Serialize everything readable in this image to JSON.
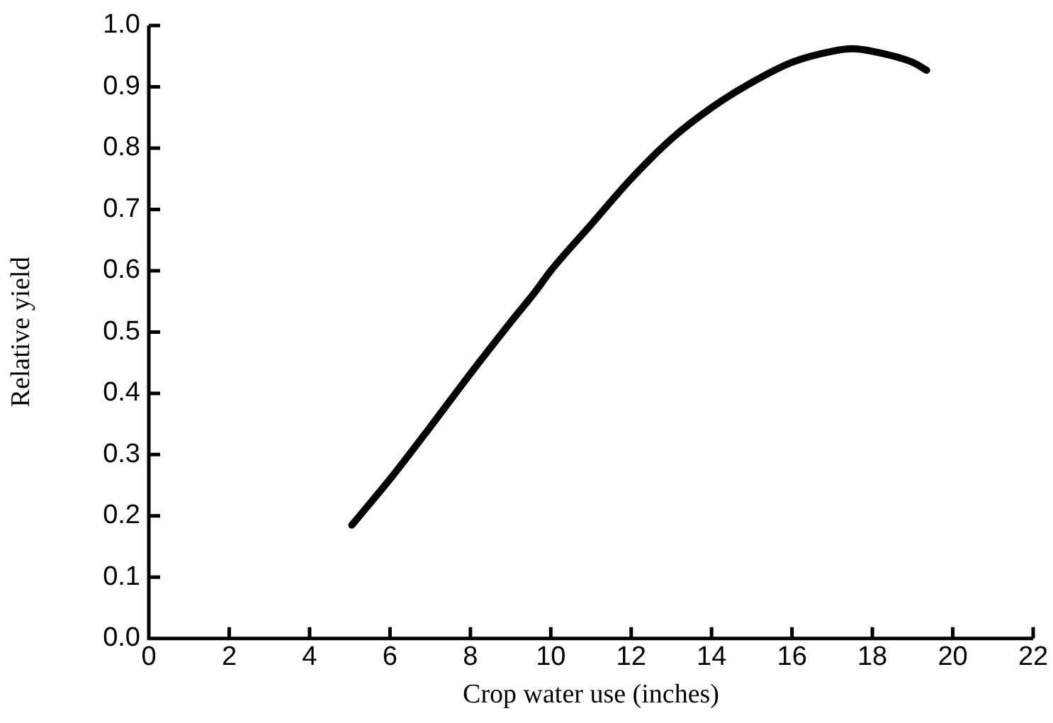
{
  "chart_data": {
    "type": "line",
    "xlabel": "Crop water use (inches)",
    "ylabel": "Relative yield",
    "series": [
      {
        "color": "#000000",
        "x": [
          5.05,
          6,
          7,
          8,
          9,
          9.64,
          10,
          11,
          12,
          13,
          14,
          15,
          16,
          17,
          17.5,
          18,
          19,
          19.35
        ],
        "values": [
          0.185,
          0.26,
          0.345,
          0.432,
          0.516,
          0.568,
          0.6,
          0.675,
          0.75,
          0.815,
          0.866,
          0.907,
          0.94,
          0.958,
          0.962,
          0.958,
          0.94,
          0.927
        ]
      }
    ],
    "xlim": [
      0,
      22
    ],
    "xticks": [
      0,
      2,
      4,
      6,
      8,
      10,
      12,
      14,
      16,
      18,
      20,
      22
    ],
    "ylim": [
      0,
      1
    ],
    "yticks": [
      {
        "value": 0,
        "label": "0.0"
      },
      0.1,
      0.2,
      0.3,
      0.4,
      0.5,
      0.6,
      0.7,
      0.8,
      0.9,
      {
        "value": 1,
        "label": "1.0"
      }
    ],
    "grid": false,
    "legend": false,
    "marker": "none",
    "line_style": "solid"
  }
}
